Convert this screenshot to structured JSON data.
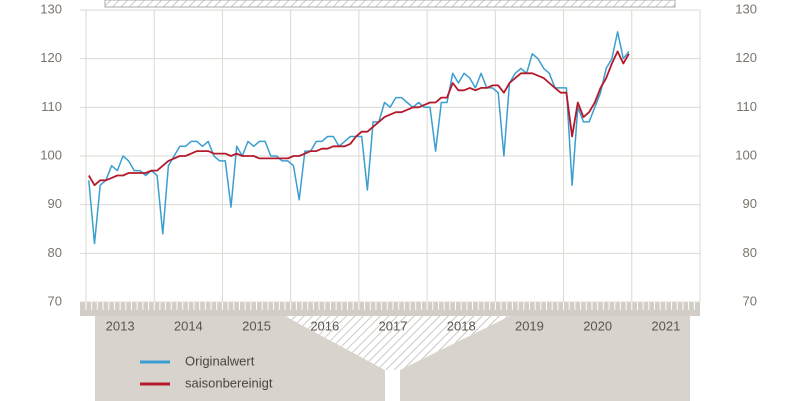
{
  "chart_data": {
    "type": "line",
    "categories": [
      null,
      null,
      null,
      null,
      null,
      null,
      "2013",
      null,
      null,
      null,
      null,
      null,
      null,
      null,
      null,
      null,
      null,
      null,
      "2014",
      null,
      null,
      null,
      null,
      null,
      null,
      null,
      null,
      null,
      null,
      null,
      "2015",
      null,
      null,
      null,
      null,
      null,
      null,
      null,
      null,
      null,
      null,
      null,
      "2016",
      null,
      null,
      null,
      null,
      null,
      null,
      null,
      null,
      null,
      null,
      null,
      "2017",
      null,
      null,
      null,
      null,
      null,
      null,
      null,
      null,
      null,
      null,
      null,
      "2018",
      null,
      null,
      null,
      null,
      null,
      null,
      null,
      null,
      null,
      null,
      null,
      "2019",
      null,
      null,
      null,
      null,
      null,
      null,
      null,
      null,
      null,
      null,
      null,
      "2020",
      null,
      null,
      null,
      null,
      null,
      null,
      null,
      null,
      null,
      null,
      null,
      "2021",
      null,
      null,
      null,
      null,
      null
    ],
    "series": [
      {
        "name": "Originalwert",
        "color": "#3a9fd0",
        "values": [
          95,
          82,
          94,
          95,
          98,
          97,
          100,
          99,
          97,
          97,
          96,
          97,
          96,
          84,
          98,
          100,
          102,
          102,
          103,
          103,
          102,
          103,
          100,
          99,
          99,
          89.5,
          102,
          100,
          103,
          102,
          103,
          103,
          100,
          100,
          99,
          99,
          98,
          91,
          101,
          101,
          103,
          103,
          104,
          104,
          102,
          103,
          104,
          104,
          104,
          93,
          107,
          107,
          111,
          110,
          112,
          112,
          111,
          110,
          111,
          110,
          110,
          101,
          111,
          111,
          117,
          115,
          117,
          116,
          114,
          117,
          114,
          114,
          113,
          100,
          115,
          117,
          118,
          117,
          121,
          120,
          118,
          117,
          114,
          114,
          114,
          94,
          110,
          107,
          107,
          110,
          113,
          118,
          120,
          125.5,
          120,
          121.5,
          null,
          null,
          null,
          null,
          null,
          null,
          null,
          null,
          null,
          null,
          null,
          null
        ]
      },
      {
        "name": "saisonbereinigt",
        "color": "#b5192b",
        "values": [
          96,
          94,
          95,
          95,
          95.5,
          96,
          96,
          96.5,
          96.5,
          96.5,
          96.5,
          97,
          97,
          98,
          99,
          99.5,
          100,
          100,
          100.5,
          101,
          101,
          101,
          100.5,
          100.5,
          100.5,
          100,
          100.5,
          100,
          100,
          100,
          99.5,
          99.5,
          99.5,
          99.5,
          99.5,
          99.5,
          100,
          100,
          100.5,
          101,
          101,
          101.5,
          101.5,
          102,
          102,
          102,
          102.5,
          104,
          105,
          105,
          106,
          107,
          108,
          108.5,
          109,
          109,
          109.5,
          110,
          110,
          110.5,
          111,
          111,
          112,
          112,
          115,
          113.5,
          113.5,
          114,
          113.5,
          114,
          114,
          114.5,
          114.5,
          113,
          115,
          116,
          117,
          117,
          117,
          116.5,
          116,
          115,
          114,
          113,
          113,
          104,
          111,
          108,
          109,
          111,
          114,
          116,
          119,
          121.5,
          119,
          121,
          null,
          null,
          null,
          null,
          null,
          null,
          null,
          null,
          null,
          null,
          null,
          null
        ]
      }
    ],
    "ylim": [
      70,
      130
    ],
    "yticks": [
      70,
      80,
      90,
      100,
      110,
      120,
      130
    ],
    "grid": true
  }
}
